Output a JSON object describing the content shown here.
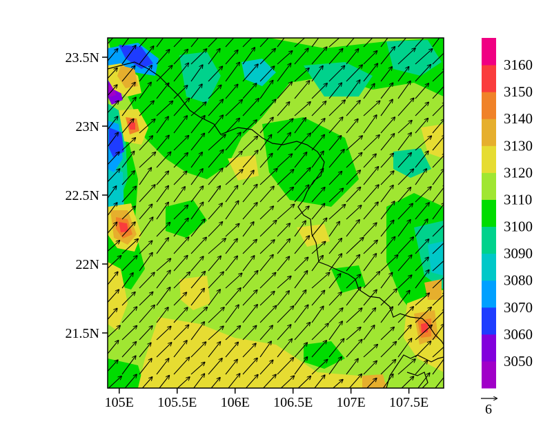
{
  "map": {
    "lat_ticks": [
      "23.5N",
      "23N",
      "22.5N",
      "22N",
      "21.5N"
    ],
    "lat_values": [
      23.5,
      23.0,
      22.5,
      22.0,
      21.5
    ],
    "lon_ticks": [
      "105E",
      "105.5E",
      "106E",
      "106.5E",
      "107E",
      "107.5E"
    ],
    "lon_values": [
      105.0,
      105.5,
      106.0,
      106.5,
      107.0,
      107.5
    ],
    "extent": {
      "lon_min": 104.9,
      "lon_max": 107.8,
      "lat_min": 21.1,
      "lat_max": 23.64
    },
    "vector_reference": "6",
    "wind_direction": "southwesterly",
    "background_field_value": 3120
  },
  "colorbar": {
    "labels": [
      "3050",
      "3060",
      "3070",
      "3080",
      "3090",
      "3100",
      "3110",
      "3120",
      "3130",
      "3140",
      "3150",
      "3160"
    ],
    "colors": [
      "#a000c8",
      "#8200dc",
      "#1e3cff",
      "#00a0ff",
      "#00c8c8",
      "#00d28c",
      "#00dc00",
      "#a0e632",
      "#e6dc32",
      "#e6af2d",
      "#f08228",
      "#fa3c3c",
      "#f00082"
    ]
  }
}
